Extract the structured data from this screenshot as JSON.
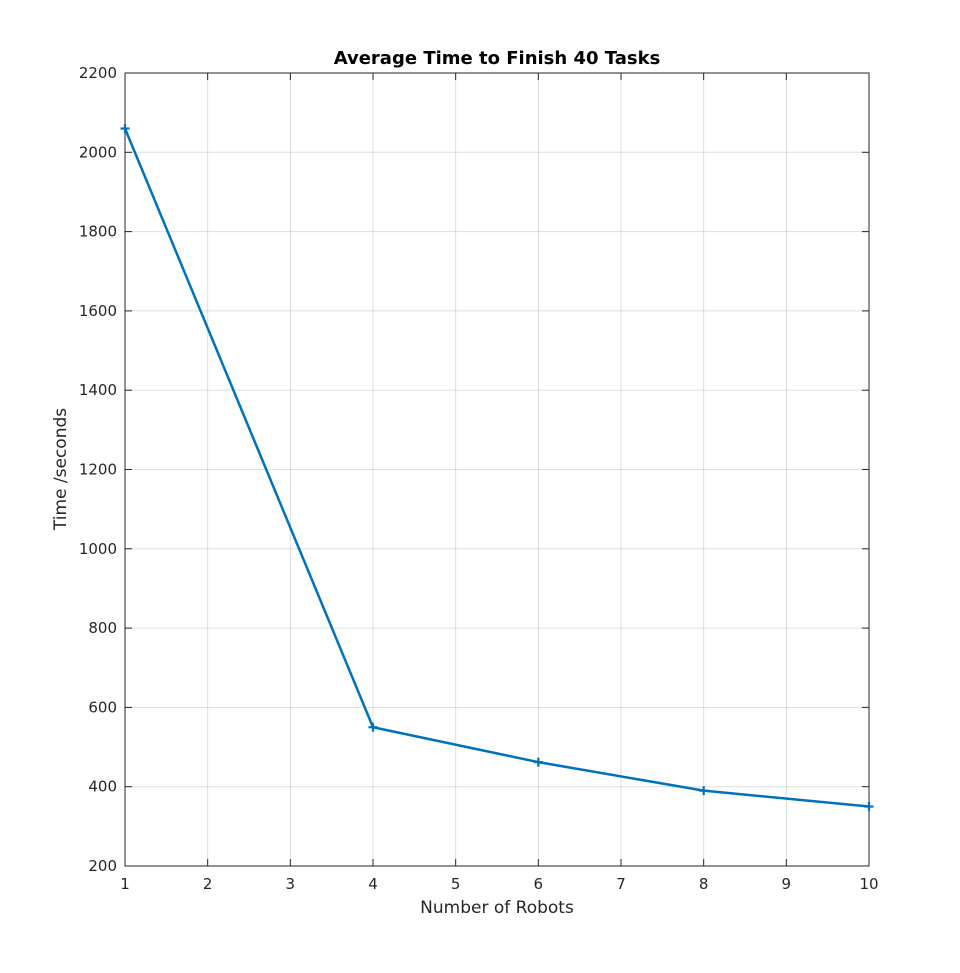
{
  "chart_data": {
    "type": "line",
    "title": "Average Time to Finish 40 Tasks",
    "xlabel": "Number of Robots",
    "ylabel": "Time /seconds",
    "xlim": [
      1,
      10
    ],
    "ylim": [
      200,
      2200
    ],
    "xticks": [
      1,
      2,
      3,
      4,
      5,
      6,
      7,
      8,
      9,
      10
    ],
    "yticks": [
      200,
      400,
      600,
      800,
      1000,
      1200,
      1400,
      1600,
      1800,
      2000,
      2200
    ],
    "grid": true,
    "marker": "plus",
    "series": [
      {
        "x": [
          1,
          4,
          6,
          8,
          10
        ],
        "y": [
          2060,
          550,
          462,
          390,
          350
        ],
        "color": "#0072BD"
      }
    ]
  }
}
